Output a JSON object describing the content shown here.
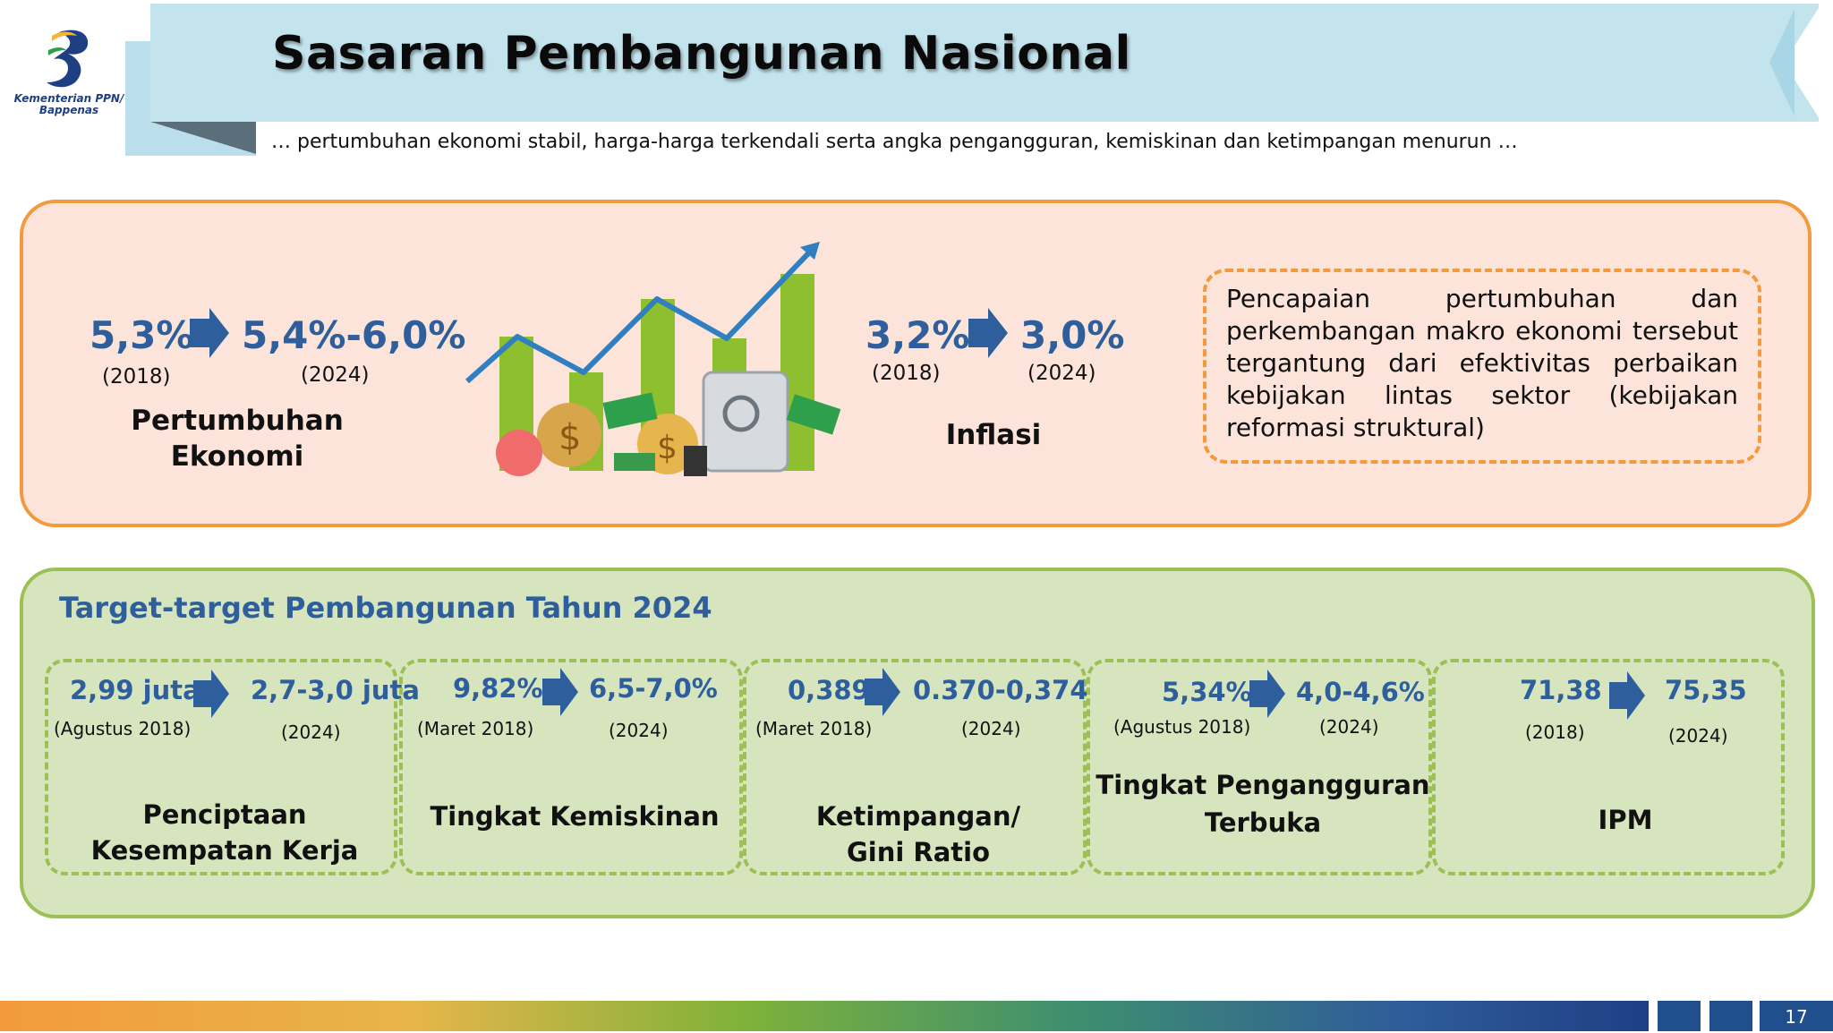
{
  "logo": {
    "text_line1": "Kementerian PPN/",
    "text_line2": "Bappenas"
  },
  "header": {
    "title": "Sasaran Pembangunan Nasional",
    "subtitle": "… pertumbuhan ekonomi stabil, harga-harga terkendali serta angka pengangguran, kemiskinan dan ketimpangan menurun …"
  },
  "macro": {
    "growth": {
      "from_value": "5,3%",
      "from_year": "(2018)",
      "to_value": "5,4%-6,0%",
      "to_year": "(2024)",
      "label_line1": "Pertumbuhan",
      "label_line2": "Ekonomi"
    },
    "inflation": {
      "from_value": "3,2%",
      "from_year": "(2018)",
      "to_value": "3,0%",
      "to_year": "(2024)",
      "label": "Inflasi"
    },
    "note": "Pencapaian pertumbuhan dan perkembangan makro ekonomi tersebut tergantung dari efektivitas perbaikan kebijakan lintas sektor (kebijakan reformasi struktural)"
  },
  "targets": {
    "title": "Target-target Pembangunan Tahun 2024",
    "items": [
      {
        "from_value": "2,99 juta",
        "from_year": "(Agustus 2018)",
        "to_value": "2,7-3,0 juta",
        "to_year": "(2024)",
        "label_line1": "Penciptaan",
        "label_line2": "Kesempatan Kerja"
      },
      {
        "from_value": "9,82%",
        "from_year": "(Maret 2018)",
        "to_value": "6,5-7,0%",
        "to_year": "(2024)",
        "label_line1": "Tingkat Kemiskinan",
        "label_line2": ""
      },
      {
        "from_value": "0,389",
        "from_year": "(Maret 2018)",
        "to_value": "0.370-0,374",
        "to_year": "(2024)",
        "label_line1": "Ketimpangan/",
        "label_line2": "Gini Ratio"
      },
      {
        "from_value": "5,34%",
        "from_year": "(Agustus 2018)",
        "to_value": "4,0-4,6%",
        "to_year": "(2024)",
        "label_line1": "Tingkat Pengangguran",
        "label_line2": "Terbuka"
      },
      {
        "from_value": "71,38",
        "from_year": "(2018)",
        "to_value": "75,35",
        "to_year": "(2024)",
        "label_line1": "IPM",
        "label_line2": ""
      }
    ]
  },
  "footer": {
    "page_number": "17"
  },
  "colors": {
    "accent_blue": "#2e5f9c",
    "orange": "#f39a3e",
    "green": "#9cc056",
    "banner": "#c3e3ed"
  }
}
